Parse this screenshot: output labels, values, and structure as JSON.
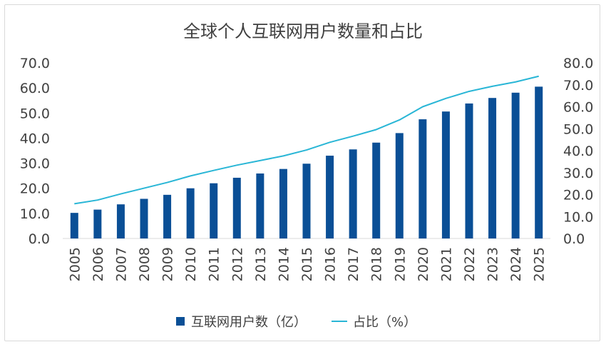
{
  "chart_data": {
    "type": "bar",
    "title": "全球个人互联网用户数量和占比",
    "categories": [
      "2005",
      "2006",
      "2007",
      "2008",
      "2009",
      "2010",
      "2011",
      "2012",
      "2013",
      "2014",
      "2015",
      "2016",
      "2017",
      "2018",
      "2019",
      "2020",
      "2021",
      "2022",
      "2023",
      "2024",
      "2025"
    ],
    "series": [
      {
        "name": "互联网用户数（亿）",
        "type": "bar",
        "axis": "left",
        "color": "#0a4f96",
        "values": [
          10.2,
          11.5,
          13.6,
          15.8,
          17.4,
          20.0,
          22.0,
          24.2,
          25.9,
          27.7,
          29.8,
          33.0,
          35.5,
          38.2,
          42.0,
          47.5,
          50.6,
          53.8,
          56.0,
          58.1,
          60.5
        ]
      },
      {
        "name": "占比（%）",
        "type": "line",
        "axis": "right",
        "color": "#29b6d6",
        "values": [
          15.8,
          17.5,
          20.3,
          22.9,
          25.5,
          28.5,
          31.0,
          33.4,
          35.5,
          37.6,
          40.3,
          43.8,
          46.6,
          49.6,
          54.0,
          60.0,
          63.8,
          67.0,
          69.3,
          71.3,
          73.9
        ]
      }
    ],
    "yleft": {
      "min": 0,
      "max": 70,
      "step": 10,
      "ticks": [
        "0.0",
        "10.0",
        "20.0",
        "30.0",
        "40.0",
        "50.0",
        "60.0",
        "70.0"
      ]
    },
    "yright": {
      "min": 0,
      "max": 80,
      "step": 10,
      "ticks": [
        "0.0",
        "10.0",
        "20.0",
        "30.0",
        "40.0",
        "50.0",
        "60.0",
        "70.0",
        "80.0"
      ]
    },
    "grid": false,
    "legend": "bottom-center",
    "legend_items": [
      {
        "label": "互联网用户数（亿）",
        "marker": "square"
      },
      {
        "label": "占比（%）",
        "marker": "line"
      }
    ]
  }
}
